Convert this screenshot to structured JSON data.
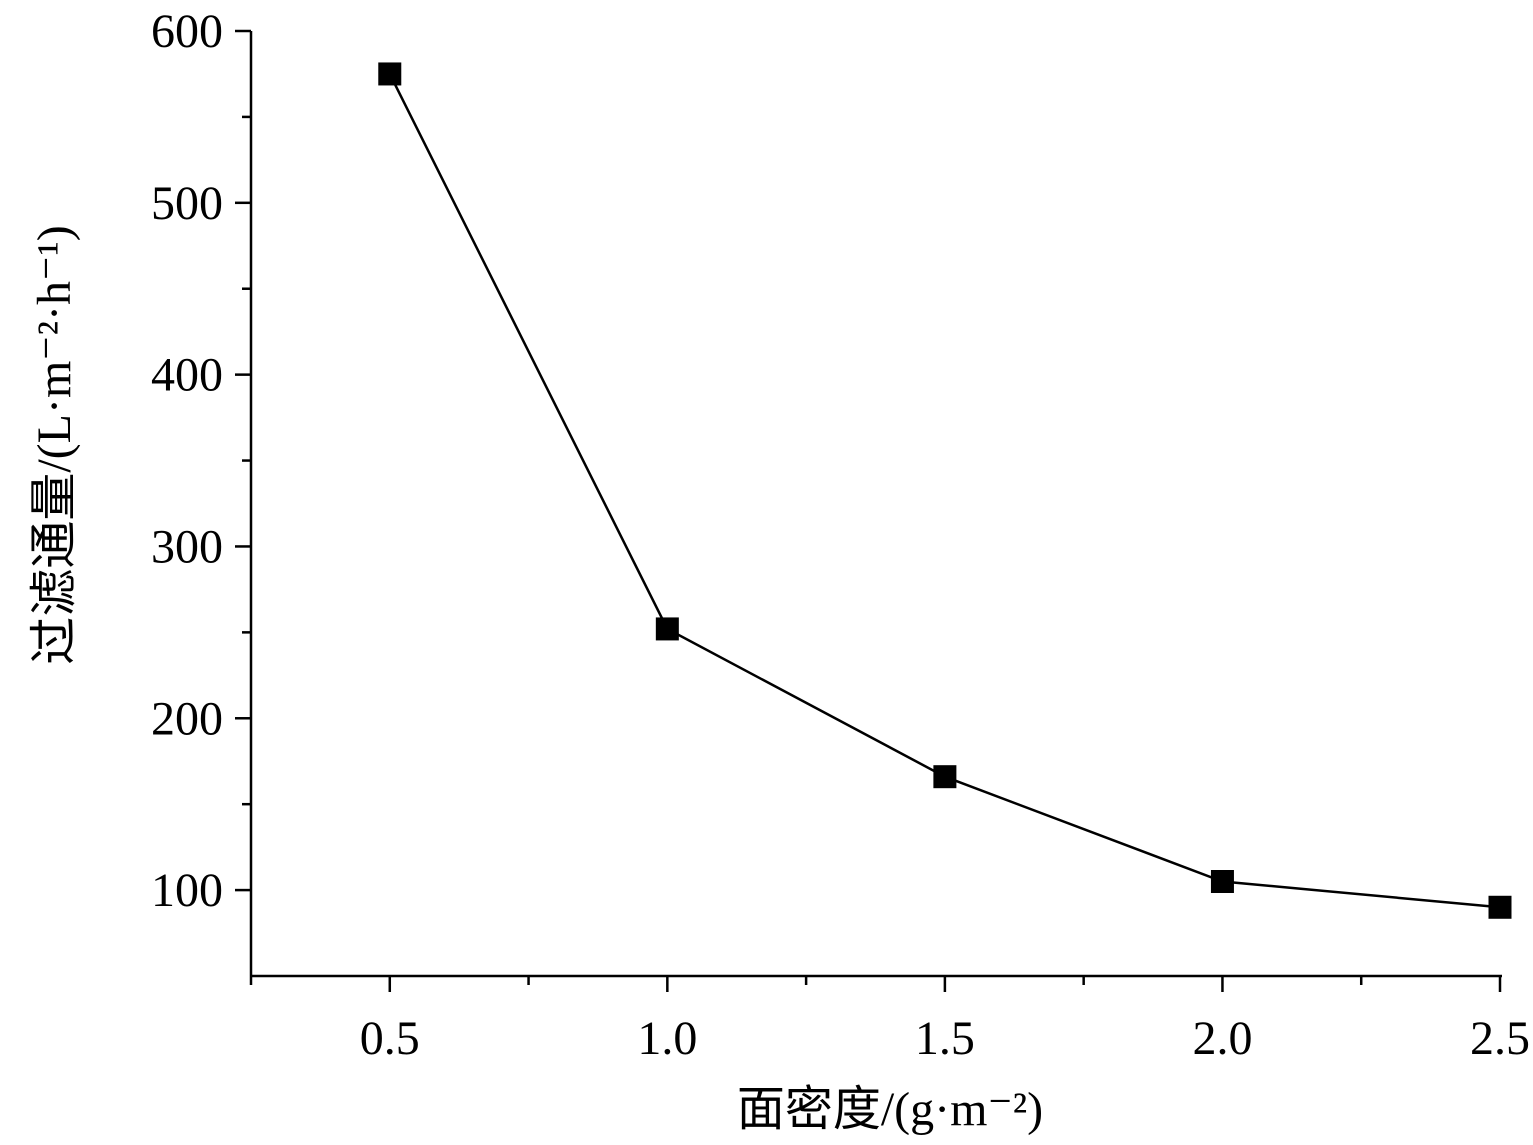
{
  "chart_data": {
    "type": "line",
    "title": "",
    "xlabel": "面密度/(g·m⁻²)",
    "ylabel": "过滤通量/(L·m⁻²·h⁻¹)",
    "xlim": [
      0.25,
      2.5
    ],
    "ylim": [
      50,
      600
    ],
    "x_major_ticks": [
      0.5,
      1.0,
      1.5,
      2.0,
      2.5
    ],
    "x_tick_labels": [
      "0.5",
      "1.0",
      "1.5",
      "2.0",
      "2.5"
    ],
    "x_minor_ticks": [
      0.25,
      0.75,
      1.25,
      1.75,
      2.25
    ],
    "y_major_ticks": [
      100,
      200,
      300,
      400,
      500,
      600
    ],
    "y_tick_labels": [
      "100",
      "200",
      "300",
      "400",
      "500",
      "600"
    ],
    "y_minor_ticks": [
      150,
      250,
      350,
      450,
      550
    ],
    "grid": false,
    "legend": "none",
    "series": [
      {
        "marker": "square",
        "color": "#000000",
        "x": [
          0.5,
          1.0,
          1.5,
          2.0,
          2.5
        ],
        "y": [
          575,
          252,
          166,
          105,
          90
        ]
      }
    ]
  }
}
